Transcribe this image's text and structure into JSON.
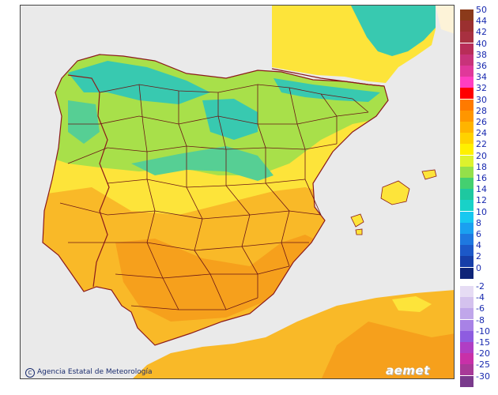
{
  "credit": {
    "text": "Agencia Estatal de Meteorología",
    "icon": "copyright-icon"
  },
  "logo": {
    "text": "aemet",
    "icon": "aemet-logo-icon"
  },
  "colors": {
    "sea": "#eaeaea",
    "border": "#8b1a1a",
    "land_hot": "#f7a21c",
    "land_warm": "#fde43a",
    "land_mild": "#a8e04a",
    "land_cool": "#38c9b0"
  },
  "legend": {
    "positive": [
      {
        "value": "50",
        "color": "#8b3a1a"
      },
      {
        "value": "44",
        "color": "#9b3030"
      },
      {
        "value": "42",
        "color": "#a83040"
      },
      {
        "value": "40",
        "color": "#b82d58"
      },
      {
        "value": "38",
        "color": "#c8337a"
      },
      {
        "value": "36",
        "color": "#e0389a"
      },
      {
        "value": "34",
        "color": "#ff3ec0"
      },
      {
        "value": "32",
        "color": "#ff0000"
      },
      {
        "value": "30",
        "color": "#ff7a00"
      },
      {
        "value": "28",
        "color": "#ff9600"
      },
      {
        "value": "26",
        "color": "#ffb400"
      },
      {
        "value": "24",
        "color": "#ffd200"
      },
      {
        "value": "22",
        "color": "#fff000"
      },
      {
        "value": "20",
        "color": "#ddf22e"
      },
      {
        "value": "18",
        "color": "#94e04a"
      },
      {
        "value": "16",
        "color": "#44d070"
      },
      {
        "value": "14",
        "color": "#1ec8a0"
      },
      {
        "value": "12",
        "color": "#18d2c8"
      },
      {
        "value": "10",
        "color": "#18c8f0"
      },
      {
        "value": "8",
        "color": "#1aa0f0"
      },
      {
        "value": "6",
        "color": "#1e78e0"
      },
      {
        "value": "4",
        "color": "#1c58c8"
      },
      {
        "value": "2",
        "color": "#163ea8"
      },
      {
        "value": "0",
        "color": "#0e2478"
      }
    ],
    "negative": [
      {
        "value": "-2",
        "color": "#e6dcf4"
      },
      {
        "value": "-4",
        "color": "#d4c2ee"
      },
      {
        "value": "-6",
        "color": "#c0a6ea"
      },
      {
        "value": "-8",
        "color": "#a882e6"
      },
      {
        "value": "-10",
        "color": "#8e5ce0"
      },
      {
        "value": "-15",
        "color": "#b03ec4"
      },
      {
        "value": "-20",
        "color": "#c830a8"
      },
      {
        "value": "-25",
        "color": "#a83a98"
      },
      {
        "value": "-30",
        "color": "#7a3a8c"
      }
    ]
  }
}
